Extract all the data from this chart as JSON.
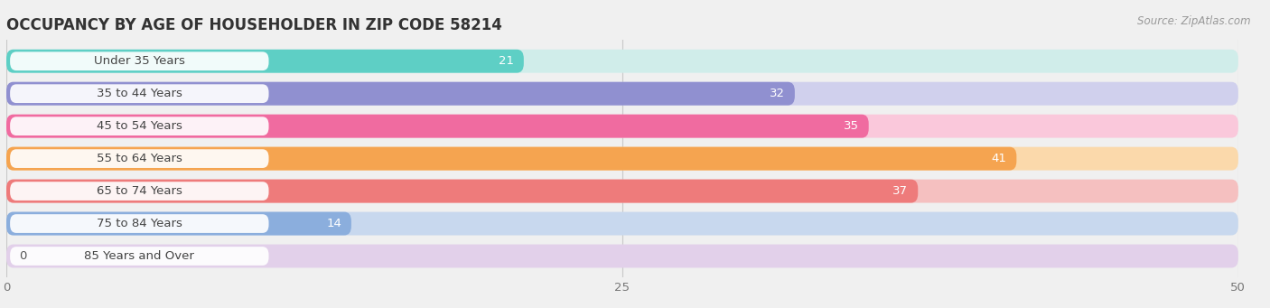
{
  "title": "OCCUPANCY BY AGE OF HOUSEHOLDER IN ZIP CODE 58214",
  "source": "Source: ZipAtlas.com",
  "categories": [
    "Under 35 Years",
    "35 to 44 Years",
    "45 to 54 Years",
    "55 to 64 Years",
    "65 to 74 Years",
    "75 to 84 Years",
    "85 Years and Over"
  ],
  "values": [
    21,
    32,
    35,
    41,
    37,
    14,
    0
  ],
  "bar_colors": [
    "#5ECFC5",
    "#9090D0",
    "#F06BA0",
    "#F5A450",
    "#EE7B7B",
    "#8BAEDD",
    "#C9A8D4"
  ],
  "bar_bg_colors": [
    "#D0EDEA",
    "#D0D0ED",
    "#FAC8DB",
    "#FBD9AB",
    "#F5C0C0",
    "#C8D8EE",
    "#E2D0EA"
  ],
  "xlim": [
    0,
    50
  ],
  "xticks": [
    0,
    25,
    50
  ],
  "background_color": "#f0f0f0",
  "title_fontsize": 12,
  "label_fontsize": 9.5,
  "value_fontsize": 9.5
}
